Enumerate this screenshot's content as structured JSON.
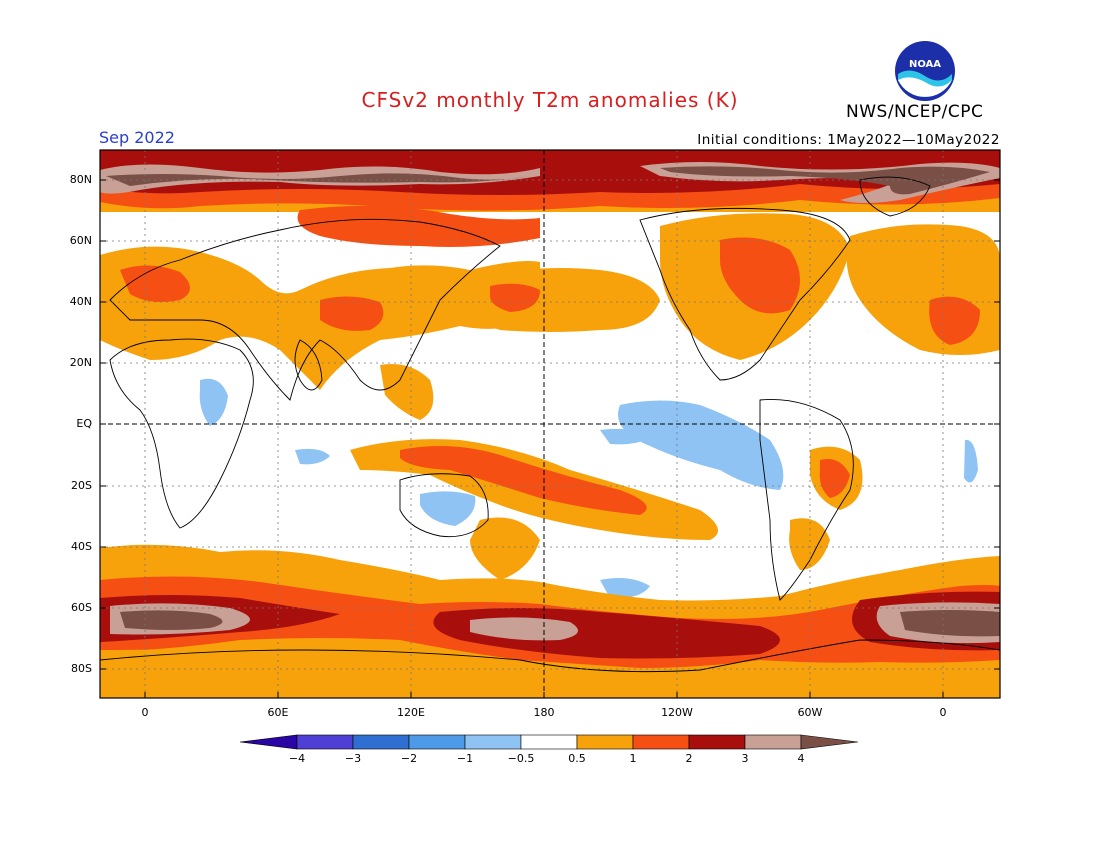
{
  "title": "CFSv2 monthly T2m anomalies (K)",
  "agency": "NWS/NCEP/CPC",
  "month": "Sep 2022",
  "initial_conditions": "Initial conditions: 1May2022—10May2022",
  "logo": {
    "icon": "noaa-logo-icon",
    "text": "NOAA"
  },
  "lat_labels": [
    "80N",
    "60N",
    "40N",
    "20N",
    "EQ",
    "20S",
    "40S",
    "60S",
    "80S"
  ],
  "lon_labels": [
    "0",
    "60E",
    "120E",
    "180",
    "120W",
    "60W",
    "0"
  ],
  "colorbar": {
    "labels": [
      "−4",
      "−3",
      "−2",
      "−1",
      "−0.5",
      "0.5",
      "1",
      "2",
      "3",
      "4"
    ],
    "colors": [
      "#2a06a6",
      "#4f3fd4",
      "#2f6fd2",
      "#4d9ae8",
      "#8ec3f3",
      "#ffffff",
      "#f7a10b",
      "#f54f14",
      "#a80f0c",
      "#c8a095",
      "#7a4f45"
    ]
  },
  "legend_colors": {
    "warm_1": "#f7a10b",
    "warm_2": "#f54f14",
    "warm_3": "#a80f0c",
    "warm_4": "#c8a095",
    "warm_5": "#7a4f45",
    "cool_1": "#8ec3f3",
    "cool_2": "#4d9ae8"
  }
}
